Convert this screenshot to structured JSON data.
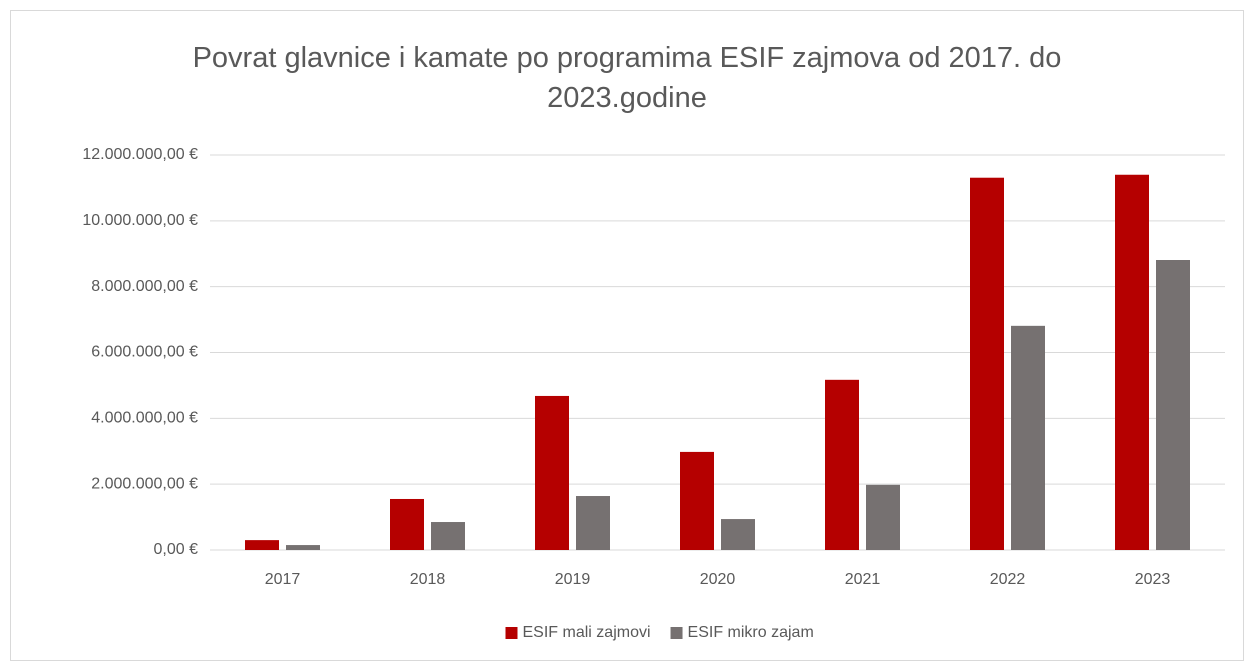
{
  "chart_data": {
    "type": "bar",
    "title": "Povrat glavnice i kamate po programima ESIF zajmova od 2017. do 2023.godine",
    "categories": [
      "2017",
      "2018",
      "2019",
      "2020",
      "2021",
      "2022",
      "2023"
    ],
    "series": [
      {
        "name": "ESIF mali zajmovi",
        "color": "#b50000",
        "values": [
          300000,
          1550000,
          4680000,
          2980000,
          5170000,
          11310000,
          11400000
        ]
      },
      {
        "name": "ESIF mikro zajam",
        "color": "#767171",
        "values": [
          150000,
          850000,
          1640000,
          940000,
          1980000,
          6810000,
          8810000
        ]
      }
    ],
    "ylim": [
      0,
      12000000
    ],
    "yticks": [
      {
        "value": 0,
        "label": "0,00 €"
      },
      {
        "value": 2000000,
        "label": "2.000.000,00 €"
      },
      {
        "value": 4000000,
        "label": "4.000.000,00 €"
      },
      {
        "value": 6000000,
        "label": "6.000.000,00 €"
      },
      {
        "value": 8000000,
        "label": "8.000.000,00 €"
      },
      {
        "value": 10000000,
        "label": "10.000.000,00 €"
      },
      {
        "value": 12000000,
        "label": "12.000.000,00 €"
      }
    ],
    "grid": true,
    "legend": "bottom"
  }
}
